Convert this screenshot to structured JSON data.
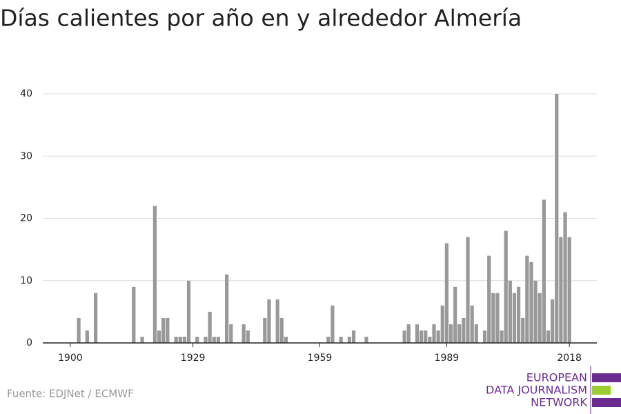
{
  "chart_data": {
    "type": "bar",
    "title": "Días calientes por año en y alrededor Almería",
    "x": [
      1900,
      1901,
      1902,
      1903,
      1904,
      1905,
      1906,
      1907,
      1908,
      1909,
      1910,
      1911,
      1912,
      1913,
      1914,
      1915,
      1916,
      1917,
      1918,
      1919,
      1920,
      1921,
      1922,
      1923,
      1924,
      1925,
      1926,
      1927,
      1928,
      1929,
      1930,
      1931,
      1932,
      1933,
      1934,
      1935,
      1936,
      1937,
      1938,
      1939,
      1940,
      1941,
      1942,
      1943,
      1944,
      1945,
      1946,
      1947,
      1948,
      1949,
      1950,
      1951,
      1952,
      1953,
      1954,
      1955,
      1956,
      1957,
      1958,
      1959,
      1960,
      1961,
      1962,
      1963,
      1964,
      1965,
      1966,
      1967,
      1968,
      1969,
      1970,
      1971,
      1972,
      1973,
      1974,
      1975,
      1976,
      1977,
      1978,
      1979,
      1980,
      1981,
      1982,
      1983,
      1984,
      1985,
      1986,
      1987,
      1988,
      1989,
      1990,
      1991,
      1992,
      1993,
      1994,
      1995,
      1996,
      1997,
      1998,
      1999,
      2000,
      2001,
      2002,
      2003,
      2004,
      2005,
      2006,
      2007,
      2008,
      2009,
      2010,
      2011,
      2012,
      2013,
      2014,
      2015,
      2016,
      2017,
      2018
    ],
    "values": [
      0,
      0,
      4,
      0,
      2,
      0,
      8,
      0,
      0,
      0,
      0,
      0,
      0,
      0,
      0,
      9,
      0,
      1,
      0,
      0,
      22,
      2,
      4,
      4,
      0,
      1,
      1,
      1,
      10,
      0,
      1,
      0,
      1,
      5,
      1,
      1,
      0,
      11,
      3,
      0,
      0,
      3,
      2,
      0,
      0,
      0,
      4,
      7,
      0,
      7,
      4,
      1,
      0,
      0,
      0,
      0,
      0,
      0,
      0,
      0,
      0,
      1,
      6,
      0,
      1,
      0,
      1,
      2,
      0,
      0,
      1,
      0,
      0,
      0,
      0,
      0,
      0,
      0,
      0,
      2,
      3,
      0,
      3,
      2,
      2,
      1,
      3,
      2,
      6,
      16,
      3,
      9,
      3,
      4,
      17,
      6,
      3,
      0,
      2,
      14,
      8,
      8,
      2,
      18,
      10,
      8,
      9,
      4,
      14,
      13,
      10,
      8,
      23,
      2,
      7,
      40,
      17,
      21,
      17
    ],
    "color": "#999999",
    "xlim": [
      1893.5,
      2024.5
    ],
    "xticks": [
      1900,
      1929,
      1959,
      1989,
      2018
    ],
    "ylim": [
      0,
      40
    ],
    "yticks": [
      0,
      10,
      20,
      30,
      40
    ],
    "grid": true,
    "source": "Fuente: EDJNet / ECMWF",
    "logo": [
      "EUROPEAN",
      "DATA JOURNALISM",
      "NETWORK"
    ]
  }
}
